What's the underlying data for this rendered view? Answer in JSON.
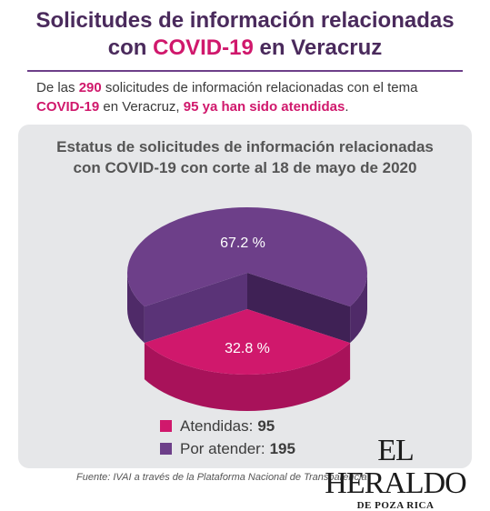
{
  "header": {
    "title_line1": "Solicitudes de información relacionadas",
    "title_line2_accent": "COVID-19",
    "title_line2_pre": "con",
    "title_line2_post": "en Veracruz"
  },
  "intro": {
    "p1": "De las",
    "n_total": "290",
    "p2": "solicitudes de información relacionadas con el tema",
    "topic": "COVID-19",
    "p3": "en Veracruz,",
    "attended_phrase": "95 ya han sido atendidas",
    "p4": "."
  },
  "chart_data": {
    "type": "pie",
    "title": "Estatus de solicitudes de información relacionadas con COVID-19 con corte al 18 de mayo de 2020",
    "title_line1": "Estatus de solicitudes de información relacionadas",
    "title_line2": "con COVID-19 con corte al 18 de mayo de 2020",
    "categories": [
      "Atendidas",
      "Por atender"
    ],
    "values": [
      95,
      195
    ],
    "percent_labels": [
      "32.8 %",
      "67.2 %"
    ],
    "percentages": [
      32.8,
      67.2
    ],
    "colors": [
      "#d0186c",
      "#6d3f89"
    ],
    "side_colors": [
      "#a8125a",
      "#4f2a68"
    ]
  },
  "legend": {
    "items": [
      {
        "label": "Atendidas:",
        "value": "95",
        "color": "#d0186c"
      },
      {
        "label": "Por atender:",
        "value": "195",
        "color": "#6d3f89"
      }
    ]
  },
  "source": "Fuente: IVAI a través de la Plataforma Nacional de Transparencia",
  "logo": {
    "main": "EL HERALDO",
    "sub": "DE POZA RICA"
  }
}
